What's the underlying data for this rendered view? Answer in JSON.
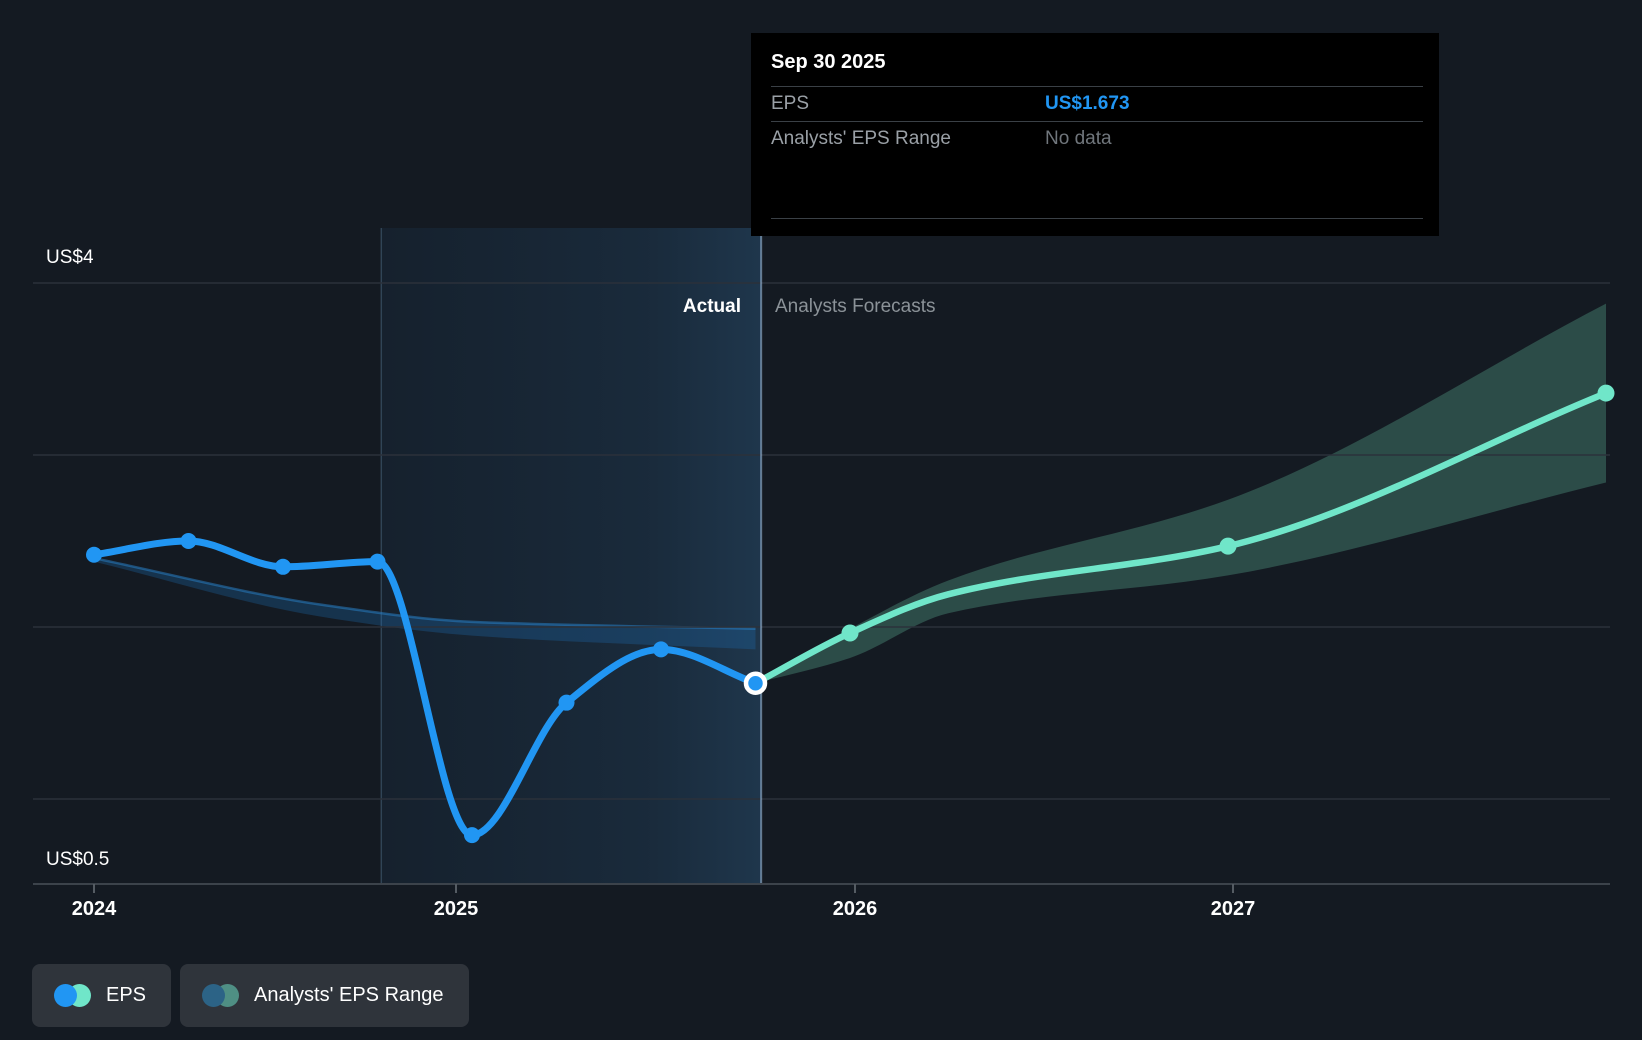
{
  "page": {
    "background": "#141a22"
  },
  "tooltip": {
    "date": "Sep 30 2025",
    "rows": [
      {
        "label": "EPS",
        "value": "US$1.673",
        "value_color": "#2196f3"
      },
      {
        "label": "Analysts' EPS Range",
        "value": "No data",
        "value_color": "#70767c"
      }
    ]
  },
  "period_labels": {
    "actual": "Actual",
    "forecast": "Analysts Forecasts"
  },
  "y_axis": {
    "top_label": "US$4",
    "bottom_label": "US$0.5"
  },
  "x_axis": {
    "ticks": [
      "2024",
      "2025",
      "2026",
      "2027"
    ]
  },
  "legend": {
    "items": [
      {
        "label": "EPS",
        "colors": [
          "#2196f3",
          "#70e6c9"
        ]
      },
      {
        "label": "Analysts' EPS Range",
        "colors": [
          "#2c6386",
          "#4f8f84"
        ]
      }
    ]
  },
  "chart_data": {
    "type": "line",
    "title": "",
    "x_unit": "year",
    "xlim": [
      2023.84,
      2028.02
    ],
    "ylim": [
      0.5,
      4.32
    ],
    "y_gridlines": [
      4,
      3,
      2,
      1
    ],
    "x_axis_value": 0.5,
    "grid": true,
    "series": [
      {
        "name": "EPS",
        "role": "actual",
        "color": "#2196f3",
        "x": [
          2024.0,
          2024.25,
          2024.5,
          2024.75,
          2025.0,
          2025.25,
          2025.5,
          2025.75
        ],
        "y": [
          2.42,
          2.5,
          2.35,
          2.38,
          0.79,
          1.56,
          1.87,
          1.673
        ]
      },
      {
        "name": "EPS forecast",
        "role": "forecast",
        "color": "#70e6c9",
        "x": [
          2025.75,
          2026.0,
          2026.26,
          2027.0,
          2028.0
        ],
        "y": [
          1.673,
          1.965,
          2.19,
          2.47,
          3.36
        ],
        "markers": [
          [
            2026.0,
            1.965
          ],
          [
            2027.0,
            2.47
          ],
          [
            2028.0,
            3.36
          ]
        ]
      }
    ],
    "analysts_range_band": {
      "color": "#2c4c48",
      "x": [
        2025.75,
        2026.0,
        2026.26,
        2027.0,
        2028.0
      ],
      "upper": [
        1.673,
        1.99,
        2.27,
        2.74,
        3.88
      ],
      "lower": [
        1.673,
        1.82,
        2.08,
        2.3,
        2.84
      ]
    },
    "past_range_band": {
      "color": "rgba(31,110,180,0.30)",
      "edge_color": "rgba(40,125,195,0.55)",
      "x": [
        2024.0,
        2024.6,
        2025.0,
        2025.75
      ],
      "upper": [
        2.4,
        2.13,
        2.03,
        1.99
      ],
      "lower": [
        2.38,
        2.06,
        1.95,
        1.87
      ]
    },
    "actual_highlight_span": [
      2024.76,
      2025.765
    ],
    "selected_point": {
      "series": "EPS",
      "x": 2025.75,
      "y": 1.673,
      "label": "Sep 30 2025"
    }
  }
}
